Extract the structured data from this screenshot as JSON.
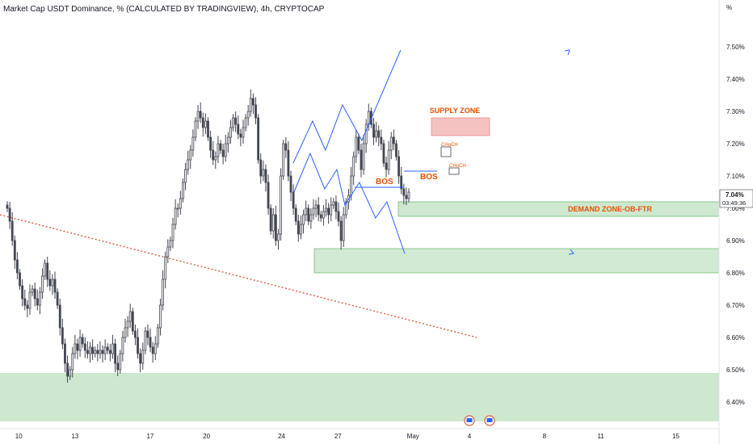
{
  "title": "Market Cap USDT Dominance, % (CALCULATED BY TRADINGVIEW), 4h, CRYPTOCAP",
  "y_axis_unit": "%",
  "colors": {
    "up": "#ffffff",
    "down": "#434651",
    "wick": "#434651",
    "demand_zone": "#a5d6a7",
    "demand_zone_border": "#4caf50",
    "supply_zone": "#ef9a9a",
    "supply_zone_border": "#e57373",
    "projection_line": "#2962ff",
    "trendline": "#e05a3a",
    "annotation_text": "#e65100",
    "bos_line": "#2962ff",
    "price_label_bg": "#ffffff",
    "grid_text": "#131722"
  },
  "annotations": {
    "supply_zone_label": "SUPPLY ZONE",
    "demand_zone_label": "DEMAND ZONE-OB-FTR",
    "bos_1": "BOS",
    "bos_2": "BOS",
    "choch_1": "CHoCH",
    "choch_2": "CHoCH"
  },
  "price_label": {
    "value": "7.04%",
    "countdown": "03:49:36"
  },
  "chart_data": {
    "type": "candlestick",
    "title": "Market Cap USDT Dominance, % (CALCULATED BY TRADINGVIEW), 4h, CRYPTOCAP",
    "y_unit": "%",
    "ylim": [
      6.34,
      7.6
    ],
    "y_ticks": [
      "7.50%",
      "7.40%",
      "7.30%",
      "7.20%",
      "7.10%",
      "7.00%",
      "6.90%",
      "6.80%",
      "6.70%",
      "6.60%",
      "6.50%",
      "6.40%"
    ],
    "y_tick_values": [
      7.5,
      7.4,
      7.3,
      7.2,
      7.1,
      7.0,
      6.9,
      6.8,
      6.7,
      6.6,
      6.5,
      6.4
    ],
    "x_ticks": [
      "10",
      "13",
      "17",
      "20",
      "24",
      "27",
      "May",
      "4",
      "8",
      "11",
      "15"
    ],
    "x_tick_values": [
      10,
      13,
      17,
      20,
      24,
      27,
      31,
      34,
      38,
      41,
      45
    ],
    "xlim": [
      9.0,
      47.3
    ],
    "x_unit_note": "day index, May 1 = 31",
    "grid": false,
    "close": [
      7.0,
      6.96,
      6.9,
      6.84,
      6.8,
      6.76,
      6.72,
      6.7,
      6.69,
      6.74,
      6.75,
      6.72,
      6.7,
      6.74,
      6.79,
      6.83,
      6.78,
      6.76,
      6.78,
      6.74,
      6.7,
      6.63,
      6.58,
      6.52,
      6.48,
      6.5,
      6.55,
      6.58,
      6.56,
      6.6,
      6.58,
      6.56,
      6.55,
      6.57,
      6.55,
      6.56,
      6.55,
      6.56,
      6.55,
      6.57,
      6.56,
      6.55,
      6.58,
      6.52,
      6.5,
      6.55,
      6.6,
      6.63,
      6.65,
      6.68,
      6.62,
      6.6,
      6.55,
      6.52,
      6.56,
      6.62,
      6.6,
      6.57,
      6.55,
      6.58,
      6.63,
      6.7,
      6.78,
      6.85,
      6.88,
      6.9,
      6.95,
      7.0,
      7.0,
      7.03,
      7.08,
      7.12,
      7.15,
      7.18,
      7.22,
      7.27,
      7.3,
      7.28,
      7.25,
      7.27,
      7.22,
      7.18,
      7.15,
      7.16,
      7.2,
      7.18,
      7.16,
      7.2,
      7.22,
      7.25,
      7.28,
      7.26,
      7.23,
      7.22,
      7.25,
      7.28,
      7.3,
      7.34,
      7.32,
      7.28,
      7.15,
      7.1,
      7.12,
      7.08,
      7.0,
      6.93,
      6.98,
      6.9,
      6.92,
      7.1,
      7.2,
      7.18,
      7.1,
      7.05,
      7.0,
      6.96,
      6.92,
      6.95,
      6.98,
      7.0,
      6.96,
      6.98,
      7.0,
      7.01,
      6.98,
      6.97,
      6.99,
      7.0,
      6.98,
      7.01,
      7.02,
      6.99,
      6.96,
      6.9,
      6.98,
      7.02,
      7.04,
      7.1,
      7.16,
      7.22,
      7.18,
      7.12,
      7.2,
      7.26,
      7.3,
      7.26,
      7.22,
      7.24,
      7.22,
      7.2,
      7.14,
      7.12,
      7.18,
      7.22,
      7.2,
      7.16,
      7.1,
      7.06,
      7.04,
      7.03,
      7.05
    ]
  }
}
